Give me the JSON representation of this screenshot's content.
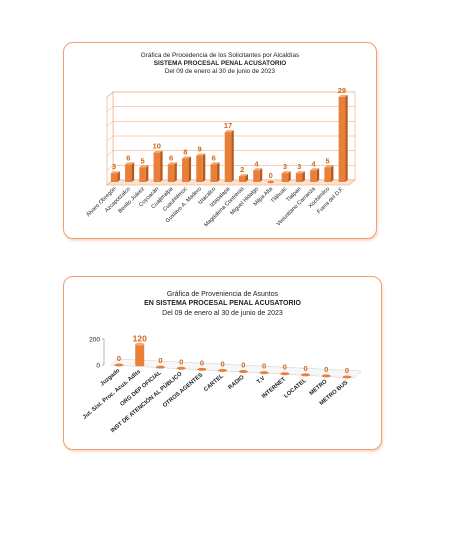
{
  "charts": [
    {
      "title_line1": "Gráfica de Procedencia de los Solicitantes por Alcaldías",
      "title_line2": "SISTEMA PROCESAL PENAL ACUSATORIO",
      "title_line3": "Del  09  de  enero  al  30 de  junio de  2023"
    },
    {
      "title_line1": "Gráfica de Proveniencia de Asuntos",
      "title_line2": "EN SISTEMA PROCESAL PENAL ACUSATORIO",
      "title_line3": "Del  09 de enero  al  30  de  junio de  2023"
    }
  ],
  "colors": {
    "bar": "#e9803a",
    "bar_dark": "#b8581a",
    "label": "#d0661b",
    "frame": "#f0a070"
  },
  "chart_data": [
    {
      "type": "bar",
      "title": "Gráfica de Procedencia de los Solicitantes por Alcaldías",
      "subtitle": "SISTEMA PROCESAL PENAL ACUSATORIO — Del 09 de enero al 30 de junio de 2023",
      "categories": [
        "Álvaro Obregón",
        "Azcapotzalco",
        "Benito Juárez",
        "Coyoacán",
        "Cuajimalpa",
        "Cuauhtémoc",
        "Gustavo A. Madero",
        "Iztacalco",
        "Iztapalapa",
        "Magdalena Contreras",
        "Miguel Hidalgo",
        "Milpa Alta",
        "Tláhuac",
        "Tlalpan",
        "Venustiano Carranza",
        "Xochimilco",
        "Fuera del D.F."
      ],
      "values": [
        3,
        6,
        5,
        10,
        6,
        8,
        9,
        6,
        17,
        2,
        4,
        0,
        3,
        3,
        4,
        5,
        29
      ],
      "ylim": [
        0,
        30
      ],
      "grid": true,
      "xlabel": "",
      "ylabel": ""
    },
    {
      "type": "bar",
      "title": "Gráfica de Proveniencia de Asuntos",
      "subtitle": "EN SISTEMA PROCESAL PENAL ACUSATORIO — Del 09 de enero al 30 de junio de 2023",
      "categories": [
        "Juzgado",
        "Jut. Sist. Proc. Acus. Adlts",
        "ORG DEP OFICIAL",
        "INST DE ATENCIÓN AL PÚBLICO",
        "OTROS AGENTES",
        "CARTEL",
        "RADIO",
        "T.V",
        "INTERNET",
        "LOCATEL",
        "METRO",
        "METRO BUS"
      ],
      "values": [
        0,
        120,
        0,
        0,
        0,
        0,
        0,
        0,
        0,
        0,
        0,
        0
      ],
      "yticks": [
        "0",
        "200"
      ],
      "ylim": [
        0,
        200
      ],
      "grid": false,
      "xlabel": "",
      "ylabel": ""
    }
  ]
}
